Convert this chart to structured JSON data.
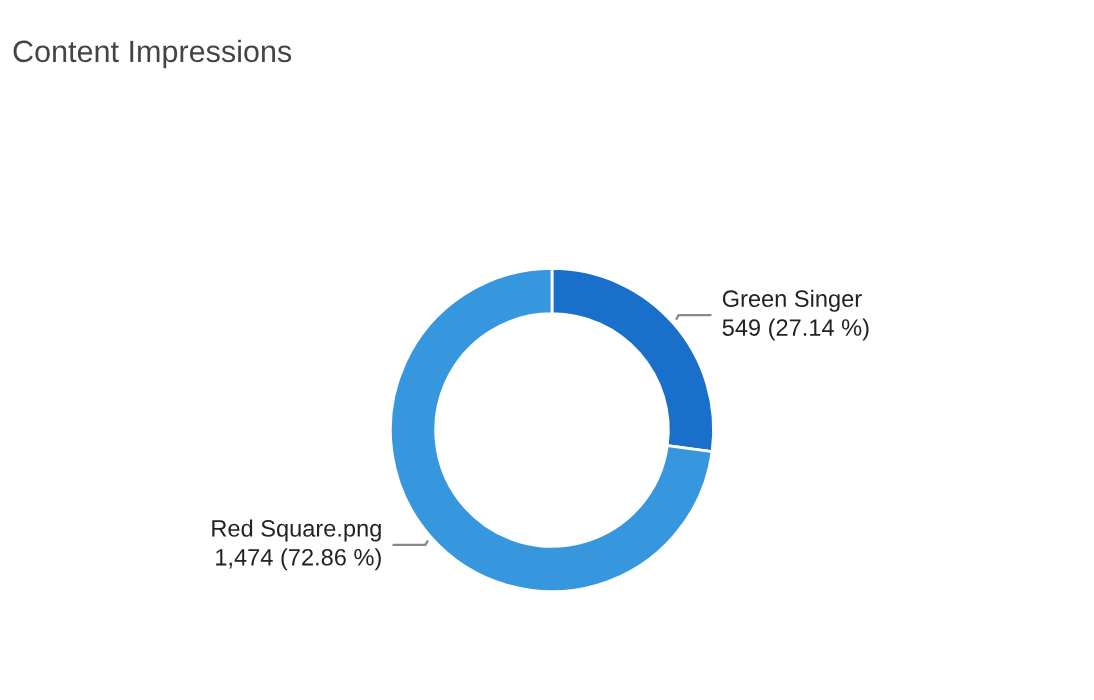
{
  "chart_data": {
    "type": "donut",
    "title": "Content Impressions",
    "categories": [
      "Green Singer",
      "Red Square.png"
    ],
    "values": [
      549,
      1474
    ],
    "colors": [
      "#1a6fca",
      "#3797de"
    ],
    "value_labels": [
      "549 (27.14 %)",
      "1,474 (72.86 %)"
    ],
    "legend": false
  }
}
